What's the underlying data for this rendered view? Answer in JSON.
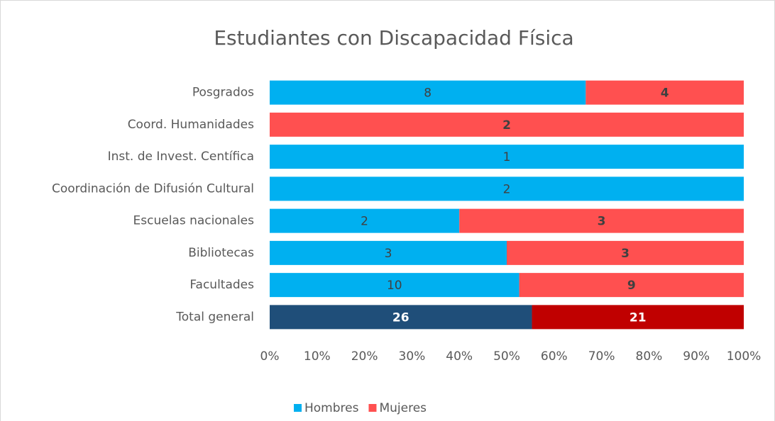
{
  "chart_data": {
    "type": "bar",
    "orientation": "horizontal",
    "stacking": "percent",
    "title": "Estudiantes con Discapacidad Física",
    "categories": [
      "Posgrados",
      "Coord. Humanidades",
      "Inst. de Invest. Centífica",
      "Coordinación de Difusión Cultural",
      "Escuelas nacionales",
      "Bibliotecas",
      "Facultades",
      "Total general"
    ],
    "series": [
      {
        "name": "Hombres",
        "color": "#00b0f0",
        "values": [
          8,
          0,
          1,
          2,
          2,
          3,
          10,
          26
        ],
        "point_colors": [
          null,
          null,
          null,
          null,
          null,
          null,
          null,
          "#1f4e79"
        ]
      },
      {
        "name": "Mujeres",
        "color": "#ff5050",
        "values": [
          4,
          2,
          0,
          0,
          3,
          3,
          9,
          21
        ],
        "point_colors": [
          null,
          null,
          null,
          null,
          null,
          null,
          null,
          "#c00000"
        ]
      }
    ],
    "xlim": [
      0,
      100
    ],
    "xticks": [
      {
        "value": 0,
        "label": "0%"
      },
      {
        "value": 10,
        "label": "10%"
      },
      {
        "value": 20,
        "label": "20%"
      },
      {
        "value": 30,
        "label": "30%"
      },
      {
        "value": 40,
        "label": "40%"
      },
      {
        "value": 50,
        "label": "50%"
      },
      {
        "value": 60,
        "label": "60%"
      },
      {
        "value": 70,
        "label": "70%"
      },
      {
        "value": 80,
        "label": "80%"
      },
      {
        "value": 90,
        "label": "90%"
      },
      {
        "value": 100,
        "label": "100%"
      }
    ],
    "grid": false,
    "legend": "bottom"
  }
}
